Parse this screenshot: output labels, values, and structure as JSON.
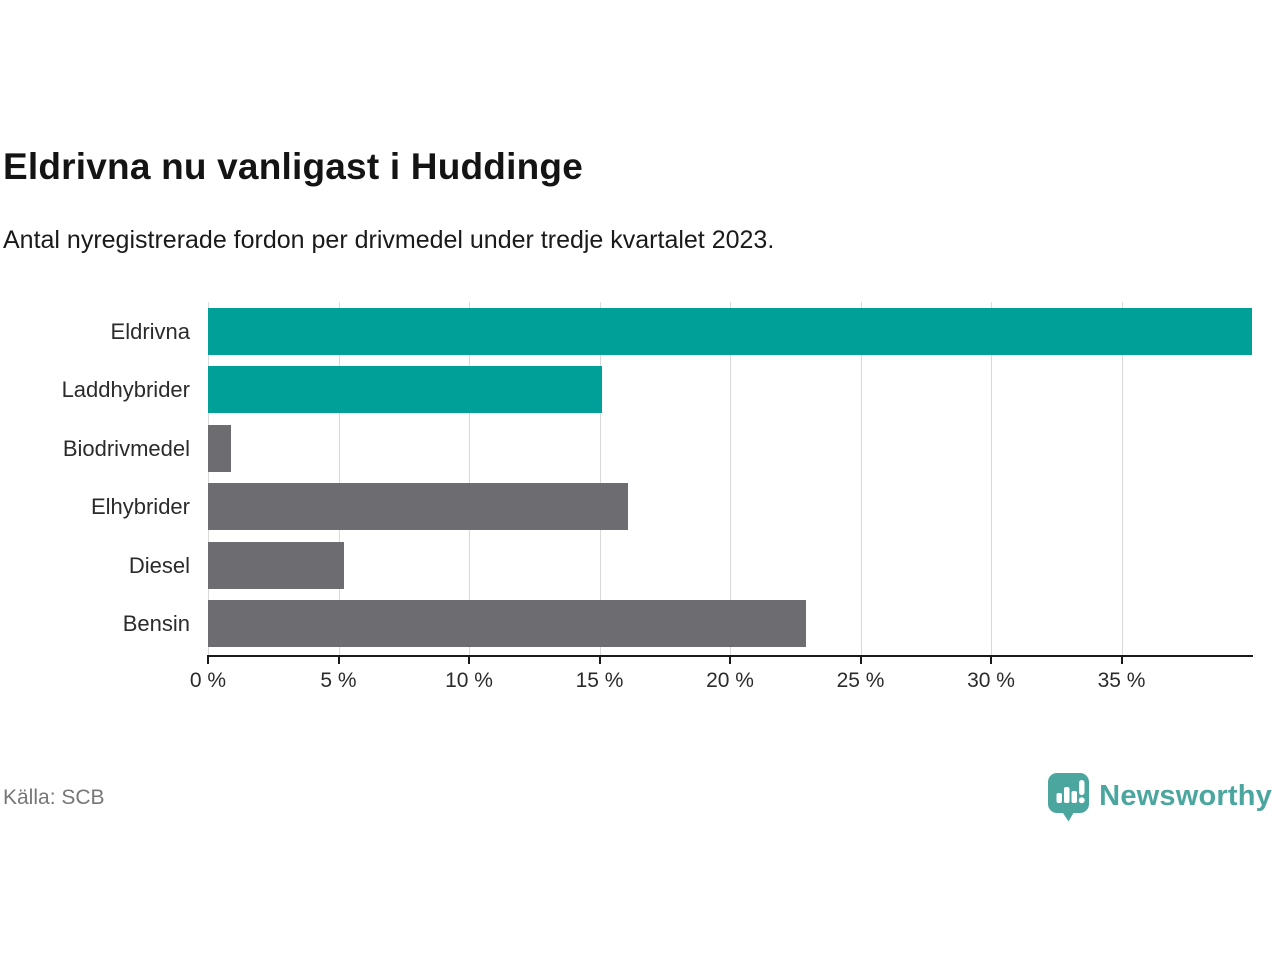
{
  "header": {
    "title": "Eldrivna nu vanligast i Huddinge",
    "subtitle": "Antal nyregistrerade fordon per drivmedel under tredje kvartalet 2023."
  },
  "chart_data": {
    "type": "bar",
    "orientation": "horizontal",
    "title": "Eldrivna nu vanligast i Huddinge",
    "subtitle": "Antal nyregistrerade fordon per drivmedel under tredje kvartalet 2023.",
    "xlabel": "",
    "ylabel": "",
    "unit": "%",
    "categories": [
      "Eldrivna",
      "Laddhybrider",
      "Biodrivmedel",
      "Elhybrider",
      "Diesel",
      "Bensin"
    ],
    "values": [
      40.0,
      15.1,
      0.9,
      16.1,
      5.2,
      22.9
    ],
    "bar_colors": [
      "#00a099",
      "#00a099",
      "#6c6c71",
      "#6c6c71",
      "#6c6c71",
      "#6c6c71"
    ],
    "highlight_color": "#00a099",
    "default_color": "#6c6c71",
    "xlim": [
      0,
      40
    ],
    "ticks": [
      0,
      5,
      10,
      15,
      20,
      25,
      30,
      35
    ],
    "tick_labels": [
      "0 %",
      "5 %",
      "10 %",
      "15 %",
      "20 %",
      "25 %",
      "30 %",
      "35 %"
    ],
    "grid": "vertical",
    "gridline_color": "#d9d9d9",
    "axis_color": "#1a1a1a",
    "legend": "none"
  },
  "footer": {
    "source": "Källa: SCB",
    "brand": "Newsworthy",
    "brand_color": "#4aa69e"
  }
}
